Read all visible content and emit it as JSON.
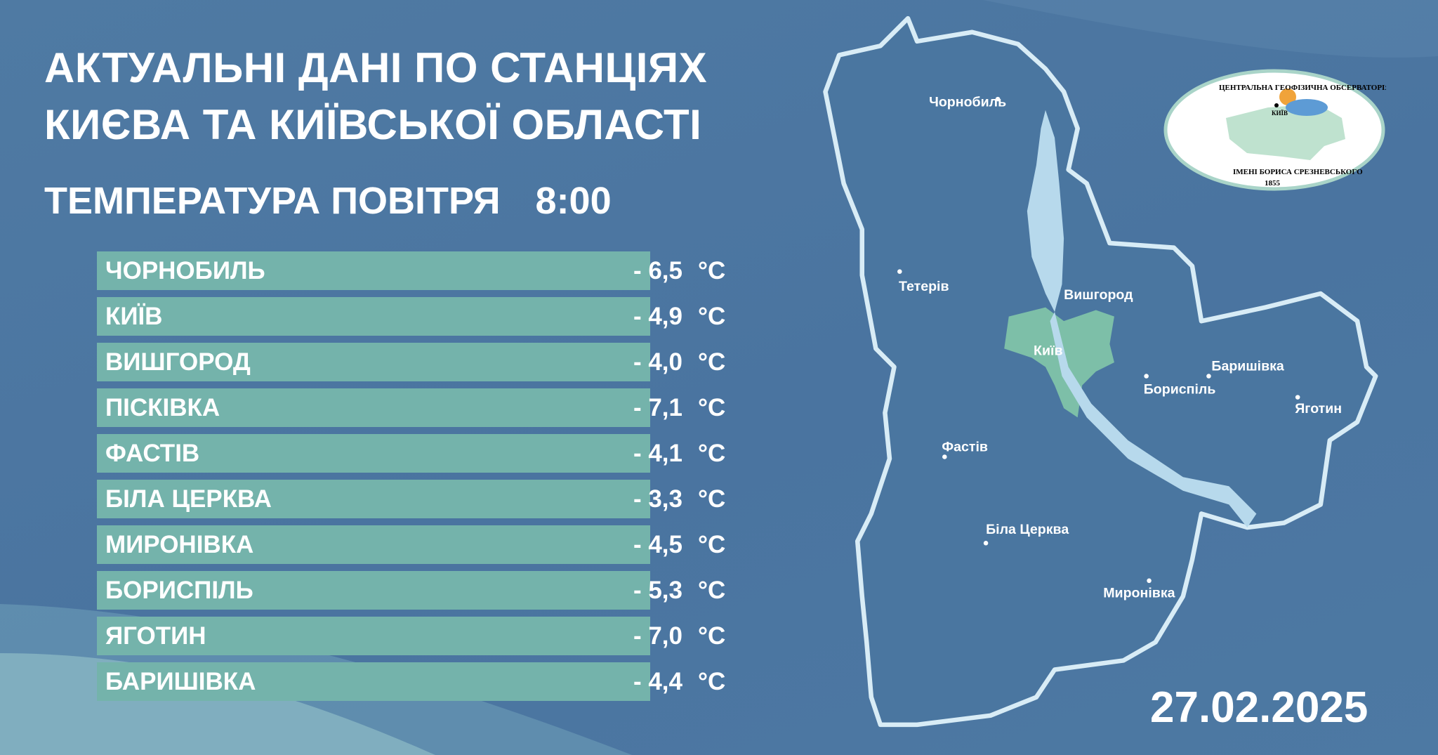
{
  "header": {
    "title_line1": "АКТУАЛЬНІ ДАНІ ПО СТАНЦІЯХ",
    "title_line2": "КИЄВА ТА КИЇВСЬКОЇ ОБЛАСТІ",
    "subtitle": "ТЕМПЕРАТУРА ПОВІТРЯ",
    "time": "8:00"
  },
  "stations": [
    {
      "name": "ЧОРНОБИЛЬ",
      "value": "- 6,5",
      "unit": "°C"
    },
    {
      "name": "КИЇВ",
      "value": "- 4,9",
      "unit": "°C"
    },
    {
      "name": "ВИШГОРОД",
      "value": "- 4,0",
      "unit": "°C"
    },
    {
      "name": "ПІСКІВКА",
      "value": "- 7,1",
      "unit": "°C"
    },
    {
      "name": "ФАСТІВ",
      "value": "- 4,1",
      "unit": "°C"
    },
    {
      "name": "БІЛА ЦЕРКВА",
      "value": "- 3,3",
      "unit": "°C"
    },
    {
      "name": "МИРОНІВКА",
      "value": "- 4,5",
      "unit": "°C"
    },
    {
      "name": "БОРИСПІЛЬ",
      "value": "- 5,3",
      "unit": "°C"
    },
    {
      "name": "ЯГОТИН",
      "value": "- 7,0",
      "unit": "°C"
    },
    {
      "name": "БАРИШІВКА",
      "value": "- 4,4",
      "unit": "°C"
    }
  ],
  "map": {
    "cities": [
      "Чорнобиль",
      "Тетерів",
      "Вишгород",
      "Київ",
      "Бориспіль",
      "Баришівка",
      "Яготин",
      "Фастів",
      "Біла Церква",
      "Миронівка"
    ],
    "colors": {
      "region_outline": "#d8ecf6",
      "river": "#b7d9ec",
      "kyiv": "#7dbfa8"
    }
  },
  "logo": {
    "top_text": "ЦЕНТРАЛЬНА ГЕОФІЗИЧНА ОБСЕРВАТОРІЯ",
    "bottom_text": "ІМЕНІ БОРИСА СРЕЗНЕВСЬКОГО",
    "year": "1855",
    "city_label": "КИЇВ"
  },
  "date": "27.02.2025"
}
